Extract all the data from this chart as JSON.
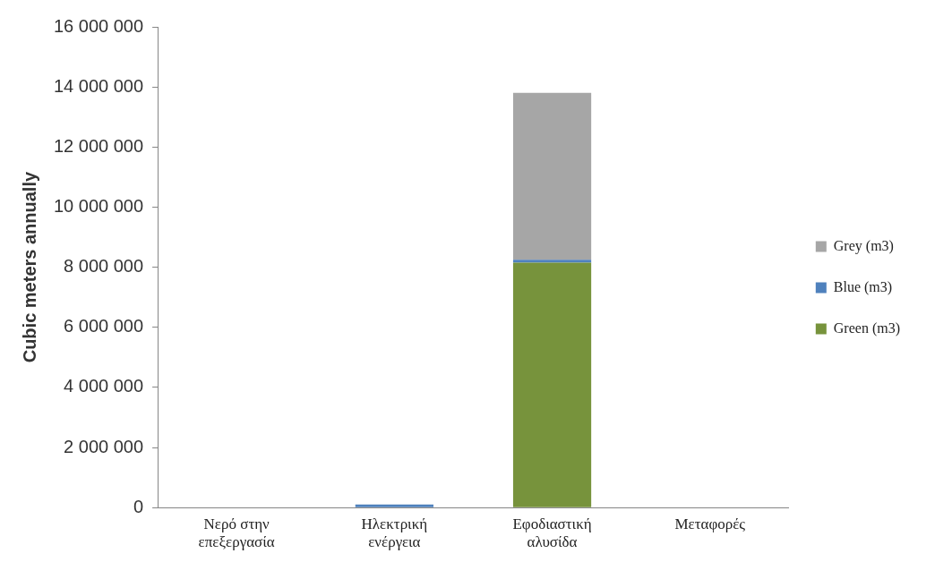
{
  "chart_data": {
    "type": "bar",
    "stacked": true,
    "ylabel": "Cubic meters annually",
    "categories": [
      "Νερό στην επεξεργασία",
      "Ηλεκτρική ενέργεια",
      "Εφοδιαστική αλυσίδα",
      "Μεταφορές"
    ],
    "series": [
      {
        "name": "Green (m3)",
        "color": "#77933c",
        "values": [
          0,
          0,
          8150000,
          0
        ]
      },
      {
        "name": "Blue (m3)",
        "color": "#4f81bd",
        "values": [
          0,
          100000,
          100000,
          0
        ]
      },
      {
        "name": "Grey (m3)",
        "color": "#a6a6a6",
        "values": [
          0,
          0,
          5550000,
          0
        ]
      }
    ],
    "ylim": [
      0,
      16000000
    ],
    "yticks": [
      {
        "value": 0,
        "label": "0"
      },
      {
        "value": 2000000,
        "label": "2 000 000"
      },
      {
        "value": 4000000,
        "label": "4 000 000"
      },
      {
        "value": 6000000,
        "label": "6 000 000"
      },
      {
        "value": 8000000,
        "label": "8 000 000"
      },
      {
        "value": 10000000,
        "label": "10 000 000"
      },
      {
        "value": 12000000,
        "label": "12 000 000"
      },
      {
        "value": 14000000,
        "label": "14 000 000"
      },
      {
        "value": 16000000,
        "label": "16 000 000"
      }
    ],
    "grid": false,
    "legend": "right"
  }
}
